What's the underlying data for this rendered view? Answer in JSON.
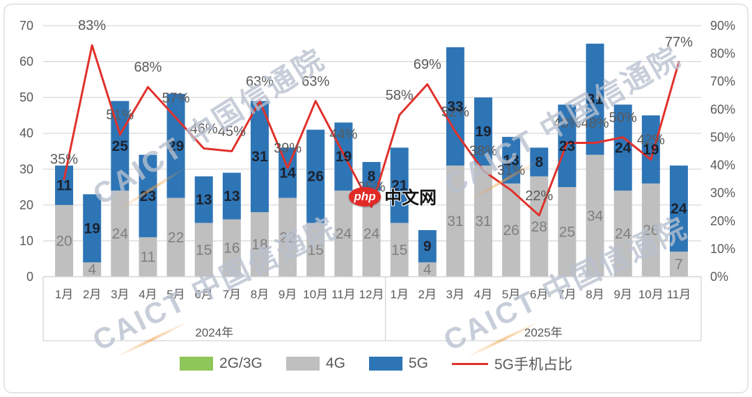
{
  "legend": [
    {
      "label": "2G/3G",
      "color": "#8fc65a",
      "swatch": "rect"
    },
    {
      "label": "4G",
      "color": "#bfbfbf",
      "swatch": "rect"
    },
    {
      "label": "5G",
      "color": "#2e75b6",
      "swatch": "rect"
    },
    {
      "label": "5G手机占比",
      "color": "#e0312b",
      "swatch": "line"
    }
  ],
  "watermark": {
    "text": "CAICT 中国信通院"
  },
  "php_logo": {
    "badge": "php",
    "text": "中文网"
  },
  "chart_data": {
    "type": "bar",
    "stacked": true,
    "grid": "horizontal",
    "legend_position": "bottom",
    "groups": [
      {
        "label": "2024年",
        "months": [
          "1月",
          "2月",
          "3月",
          "4月",
          "5月",
          "6月",
          "7月",
          "8月",
          "9月",
          "10月",
          "11月",
          "12月"
        ]
      },
      {
        "label": "2025年",
        "months": [
          "1月",
          "2月",
          "3月",
          "4月",
          "5月",
          "6月",
          "7月",
          "8月",
          "9月",
          "10月",
          "11月"
        ]
      }
    ],
    "series": [
      {
        "name": "2G/3G",
        "color": "#8fc65a",
        "values": [
          0,
          0,
          0,
          0,
          0,
          0,
          0,
          0,
          0,
          0,
          0,
          0,
          0,
          0,
          0,
          0,
          0,
          0,
          0,
          0,
          0,
          0,
          0
        ]
      },
      {
        "name": "4G",
        "color": "#bfbfbf",
        "label_color": "#7f7f7f",
        "values": [
          20,
          4,
          24,
          11,
          22,
          15,
          16,
          18,
          22,
          15,
          24,
          24,
          15,
          4,
          31,
          31,
          26,
          28,
          25,
          34,
          24,
          26,
          7
        ]
      },
      {
        "name": "5G",
        "color": "#2e75b6",
        "label_color": "#1c222e",
        "values": [
          11,
          19,
          25,
          23,
          29,
          13,
          13,
          31,
          14,
          26,
          19,
          8,
          21,
          9,
          33,
          19,
          13,
          8,
          23,
          31,
          24,
          19,
          24
        ]
      }
    ],
    "line": {
      "name": "5G手机占比",
      "color": "#e0312b",
      "axis": "right",
      "values_pct": [
        35,
        83,
        51,
        68,
        57,
        46,
        45,
        63,
        39,
        63,
        44,
        25,
        58,
        69,
        52,
        38,
        31,
        22,
        48,
        48,
        50,
        42,
        77
      ]
    },
    "ylim": [
      0,
      70
    ],
    "yticks": [
      0,
      10,
      20,
      30,
      40,
      50,
      60,
      70
    ],
    "y2lim": [
      0,
      90
    ],
    "y2ticks": [
      "0%",
      "10%",
      "20%",
      "30%",
      "40%",
      "50%",
      "60%",
      "70%",
      "80%",
      "90%"
    ]
  }
}
